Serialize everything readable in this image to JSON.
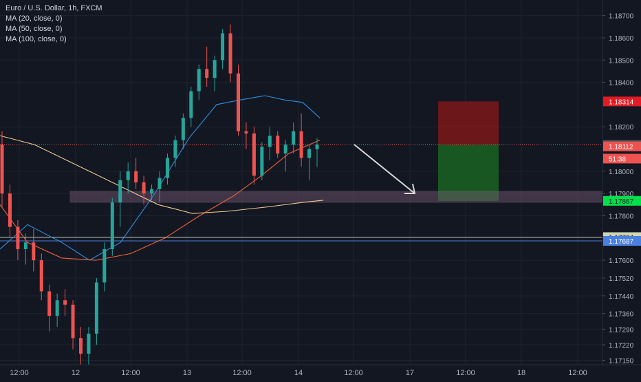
{
  "header": {
    "symbol_line": "Euro / U.S. Dollar, 1h, FXCM",
    "indicators": [
      "MA (20, close, 0)",
      "MA (50, close, 0)",
      "MA (100, close, 0)"
    ]
  },
  "colors": {
    "background": "#131722",
    "grid": "#1f2330",
    "up": "#26a69a",
    "down": "#ef5350",
    "ma20": "#2e8fe0",
    "ma50": "#f0623a",
    "ma100": "#f2c98f",
    "zone": "#7a5a78",
    "stop_box": "#8b1a1a",
    "target_box": "#1b6e22",
    "arrow": "#d9d9d9"
  },
  "chart_data": {
    "type": "candlestick",
    "title": "Euro / U.S. Dollar, 1h, FXCM",
    "timeframe": "1h",
    "y_axis": {
      "position": "right",
      "range": [
        1.1713,
        1.1877
      ],
      "ticks": [
        "1.18700",
        "1.18600",
        "1.18500",
        "1.18400",
        "1.18200",
        "1.18000",
        "1.17900",
        "1.17800",
        "1.17600",
        "1.17520",
        "1.17440",
        "1.17360",
        "1.17290",
        "1.17220",
        "1.17150"
      ]
    },
    "x_axis": {
      "ticks": [
        "12:00",
        "12",
        "12:00",
        "13",
        "12:00",
        "14",
        "12:00",
        "17",
        "12:00",
        "18",
        "12:00"
      ]
    },
    "candles": [
      [
        1.1812,
        1.1818,
        1.1784,
        1.179
      ],
      [
        1.179,
        1.1794,
        1.177,
        1.1775
      ],
      [
        1.1775,
        1.1778,
        1.176,
        1.1765
      ],
      [
        1.1765,
        1.1772,
        1.1758,
        1.1768
      ],
      [
        1.1768,
        1.1774,
        1.1755,
        1.176
      ],
      [
        1.176,
        1.1763,
        1.1742,
        1.1746
      ],
      [
        1.1746,
        1.1749,
        1.1728,
        1.1735
      ],
      [
        1.1735,
        1.1745,
        1.173,
        1.1742
      ],
      [
        1.1742,
        1.1747,
        1.1735,
        1.174
      ],
      [
        1.174,
        1.1742,
        1.172,
        1.1725
      ],
      [
        1.1725,
        1.173,
        1.1712,
        1.1718
      ],
      [
        1.1718,
        1.173,
        1.1712,
        1.1727
      ],
      [
        1.1727,
        1.1752,
        1.1722,
        1.175
      ],
      [
        1.175,
        1.1768,
        1.1746,
        1.1765
      ],
      [
        1.1765,
        1.1788,
        1.1762,
        1.1786
      ],
      [
        1.1786,
        1.18,
        1.1775,
        1.1796
      ],
      [
        1.1796,
        1.1804,
        1.179,
        1.18
      ],
      [
        1.18,
        1.1806,
        1.1792,
        1.1795
      ],
      [
        1.1795,
        1.1798,
        1.1785,
        1.179
      ],
      [
        1.179,
        1.1794,
        1.1787,
        1.1792
      ],
      [
        1.1792,
        1.18,
        1.1786,
        1.1797
      ],
      [
        1.1797,
        1.1808,
        1.1794,
        1.1806
      ],
      [
        1.1806,
        1.1816,
        1.1802,
        1.1814
      ],
      [
        1.1814,
        1.1826,
        1.181,
        1.1824
      ],
      [
        1.1824,
        1.1838,
        1.182,
        1.1836
      ],
      [
        1.1836,
        1.1848,
        1.1832,
        1.1846
      ],
      [
        1.1846,
        1.1856,
        1.1838,
        1.1842
      ],
      [
        1.1842,
        1.1852,
        1.1836,
        1.185
      ],
      [
        1.185,
        1.1864,
        1.1846,
        1.1862
      ],
      [
        1.1862,
        1.1866,
        1.184,
        1.1844
      ],
      [
        1.1844,
        1.1848,
        1.1816,
        1.1818
      ],
      [
        1.1818,
        1.1822,
        1.181,
        1.1817
      ],
      [
        1.1817,
        1.182,
        1.1794,
        1.1798
      ],
      [
        1.1798,
        1.1813,
        1.1796,
        1.1811
      ],
      [
        1.1811,
        1.182,
        1.1805,
        1.1816
      ],
      [
        1.1816,
        1.1818,
        1.1806,
        1.1808
      ],
      [
        1.1808,
        1.1814,
        1.18,
        1.1812
      ],
      [
        1.1812,
        1.1822,
        1.1808,
        1.1818
      ],
      [
        1.1818,
        1.1826,
        1.1802,
        1.1806
      ],
      [
        1.1806,
        1.1812,
        1.1796,
        1.181
      ],
      [
        1.181,
        1.1815,
        1.1802,
        1.1812
      ]
    ],
    "moving_averages": {
      "MA (20, close, 0)": [
        [
          0,
          1.1765
        ],
        [
          40,
          1.1776
        ],
        [
          90,
          1.1768
        ],
        [
          130,
          1.176
        ],
        [
          175,
          1.1768
        ],
        [
          225,
          1.179
        ],
        [
          275,
          1.1815
        ],
        [
          315,
          1.183
        ],
        [
          348,
          1.1832
        ],
        [
          385,
          1.1834
        ],
        [
          415,
          1.1832
        ],
        [
          440,
          1.1831
        ],
        [
          465,
          1.1824
        ]
      ],
      "MA (50, close, 0)": [
        [
          0,
          1.1785
        ],
        [
          40,
          1.1768
        ],
        [
          90,
          1.1761
        ],
        [
          140,
          1.176
        ],
        [
          190,
          1.1763
        ],
        [
          240,
          1.177
        ],
        [
          290,
          1.178
        ],
        [
          340,
          1.1789
        ],
        [
          380,
          1.1798
        ],
        [
          420,
          1.1808
        ],
        [
          465,
          1.1814
        ]
      ],
      "MA (100, close, 0)": [
        [
          0,
          1.1816
        ],
        [
          50,
          1.1812
        ],
        [
          110,
          1.1803
        ],
        [
          170,
          1.1794
        ],
        [
          230,
          1.1785
        ],
        [
          280,
          1.1781
        ],
        [
          330,
          1.1782
        ],
        [
          390,
          1.1784
        ],
        [
          440,
          1.1786
        ],
        [
          470,
          1.1787
        ]
      ]
    },
    "horizontal_lines": [
      {
        "price": 1.1812,
        "style": "dotted",
        "color": "#ef5350"
      },
      {
        "price": 1.17704,
        "color": "#cfd6c0"
      },
      {
        "price": 1.17687,
        "color": "#4a7de0"
      }
    ],
    "support_zone": {
      "top": 1.1791,
      "bottom": 1.1786
    },
    "position": {
      "entry": 1.18119,
      "stop": 1.18314,
      "target": 1.17867
    },
    "price_labels": [
      {
        "text": "1.18314",
        "bg": "#e01b24",
        "fg": "#ffffff",
        "price": 1.18314
      },
      {
        "text": "1.18119",
        "bg": "#4d5158",
        "fg": "#ffffff",
        "price": 1.18119
      },
      {
        "text": "1.18112",
        "bg": "#ef5350",
        "fg": "#ffffff",
        "price": 1.18112
      },
      {
        "text": "51:38",
        "bg": "#ef5350",
        "fg": "#ffffff",
        "price": 1.18057
      },
      {
        "text": "1.17867",
        "bg": "#00e04a",
        "fg": "#131722",
        "price": 1.17867
      },
      {
        "text": "1.17704",
        "bg": "#cfd6b8",
        "fg": "#131722",
        "price": 1.17704
      },
      {
        "text": "1.17687",
        "bg": "#4a80e0",
        "fg": "#ffffff",
        "price": 1.17687
      }
    ]
  }
}
